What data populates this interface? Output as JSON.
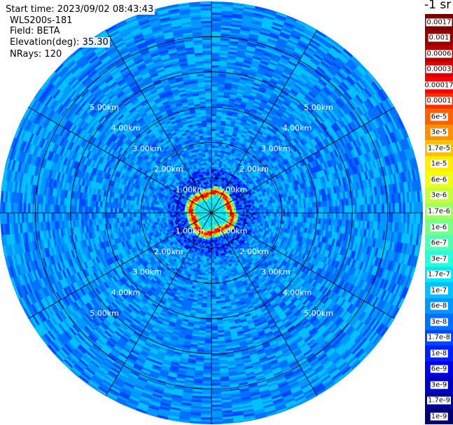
{
  "header": {
    "start_time": "Start time: 2023/09/02 08:43:43",
    "instrument": "WLS200s-181",
    "field": "Field: BETA",
    "elevation": "Elevation(deg): 35.30",
    "nrays": "NRays: 120"
  },
  "colorbar": {
    "unit_label": "-1 sr",
    "labels": [
      "0.0017",
      "0.001",
      "0.0006",
      "0.0003",
      "0.00017",
      "0.0001",
      "6e-5",
      "3e-5",
      "1.7e-5",
      "1e-5",
      "6e-6",
      "3e-6",
      "1.7e-6",
      "1e-6",
      "6e-7",
      "3e-7",
      "1.7e-7",
      "1e-7",
      "6e-8",
      "3e-8",
      "1.7e-8",
      "1e-8",
      "6e-9",
      "3e-9",
      "1.7e-9",
      "1e-9"
    ],
    "colors": [
      "#7a0000",
      "#980000",
      "#b80000",
      "#d80000",
      "#ff0000",
      "#ff3000",
      "#ff6000",
      "#ff9000",
      "#ffc000",
      "#ffee00",
      "#eeff10",
      "#c8ff38",
      "#a0ff60",
      "#78ff88",
      "#50ffb0",
      "#28ffd8",
      "#00e8ff",
      "#00c0ff",
      "#0098ff",
      "#0070ff",
      "#0048ff",
      "#0020ff",
      "#0000e8",
      "#0000c0",
      "#000098",
      "#000070"
    ]
  },
  "chart_data": {
    "type": "heatmap",
    "projection": "polar",
    "range_rings_km": [
      1,
      2,
      3,
      4,
      5
    ],
    "ring_labels": [
      "1.00km",
      "2.00km",
      "3.00km",
      "4.00km",
      "5.00km"
    ],
    "max_range_km": 6.0,
    "azimuth_spokes_deg": [
      0,
      30,
      60,
      90,
      120,
      150,
      180,
      210,
      240,
      270,
      300,
      330
    ],
    "n_rays": 120,
    "high_signal_ring_km": 0.55,
    "background_level": "1.7e-8",
    "grid": true
  }
}
